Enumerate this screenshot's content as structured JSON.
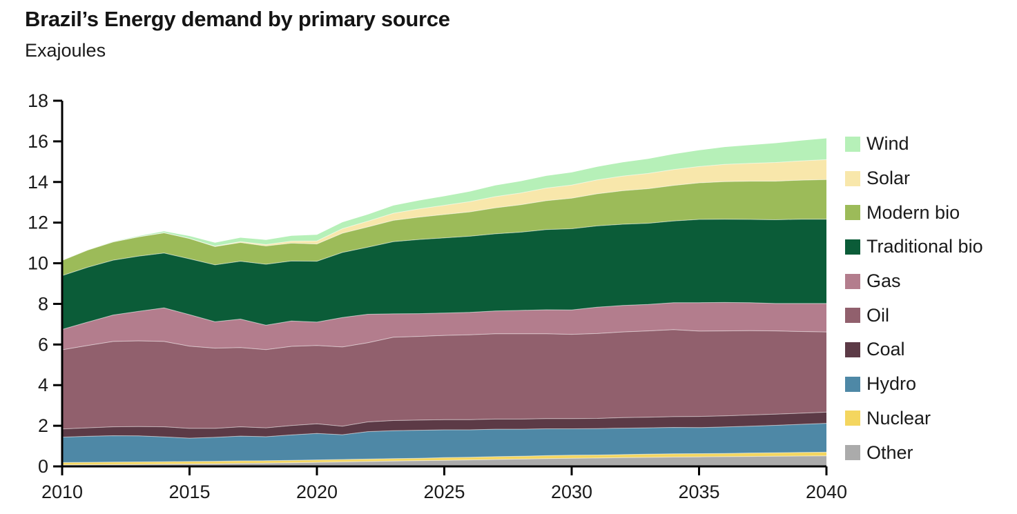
{
  "header": {
    "title": "Brazil’s Energy demand by primary source",
    "subtitle": "Exajoules"
  },
  "chart_data": {
    "type": "area",
    "stacked": true,
    "title": "Brazil’s Energy demand by primary source",
    "ylabel": "Exajoules",
    "xlabel": "",
    "grid": false,
    "legend_position": "right",
    "ylim": [
      0,
      18
    ],
    "xlim": [
      2010,
      2040
    ],
    "y_ticks": [
      0,
      2,
      4,
      6,
      8,
      10,
      12,
      14,
      16,
      18
    ],
    "x_ticks": [
      2010,
      2015,
      2020,
      2025,
      2030,
      2035,
      2040
    ],
    "x": [
      2010,
      2011,
      2012,
      2013,
      2014,
      2015,
      2016,
      2017,
      2018,
      2019,
      2020,
      2021,
      2022,
      2023,
      2024,
      2025,
      2026,
      2027,
      2028,
      2029,
      2030,
      2031,
      2032,
      2033,
      2034,
      2035,
      2036,
      2037,
      2038,
      2039,
      2040
    ],
    "series": [
      {
        "name": "Other",
        "color": "#ababab",
        "values": [
          0.07,
          0.08,
          0.09,
          0.1,
          0.11,
          0.12,
          0.13,
          0.15,
          0.16,
          0.18,
          0.2,
          0.22,
          0.24,
          0.26,
          0.28,
          0.3,
          0.32,
          0.34,
          0.36,
          0.38,
          0.4,
          0.41,
          0.43,
          0.44,
          0.46,
          0.47,
          0.48,
          0.49,
          0.5,
          0.51,
          0.52
        ]
      },
      {
        "name": "Nuclear",
        "color": "#f4d65f",
        "values": [
          0.12,
          0.12,
          0.12,
          0.12,
          0.12,
          0.12,
          0.12,
          0.12,
          0.12,
          0.12,
          0.12,
          0.12,
          0.12,
          0.12,
          0.12,
          0.13,
          0.13,
          0.14,
          0.14,
          0.15,
          0.15,
          0.15,
          0.15,
          0.16,
          0.16,
          0.16,
          0.16,
          0.17,
          0.17,
          0.18,
          0.18
        ]
      },
      {
        "name": "Hydro",
        "color": "#4e88a6",
        "values": [
          1.25,
          1.28,
          1.3,
          1.28,
          1.22,
          1.15,
          1.18,
          1.22,
          1.18,
          1.25,
          1.3,
          1.22,
          1.35,
          1.38,
          1.38,
          1.37,
          1.35,
          1.35,
          1.33,
          1.32,
          1.3,
          1.3,
          1.3,
          1.3,
          1.3,
          1.28,
          1.3,
          1.32,
          1.35,
          1.38,
          1.42
        ]
      },
      {
        "name": "Coal",
        "color": "#5c3a46",
        "values": [
          0.4,
          0.42,
          0.44,
          0.46,
          0.5,
          0.48,
          0.44,
          0.46,
          0.44,
          0.46,
          0.48,
          0.42,
          0.48,
          0.5,
          0.5,
          0.5,
          0.5,
          0.5,
          0.5,
          0.5,
          0.5,
          0.5,
          0.52,
          0.52,
          0.53,
          0.55,
          0.55,
          0.55,
          0.55,
          0.55,
          0.55
        ]
      },
      {
        "name": "Oil",
        "color": "#91606d",
        "values": [
          3.9,
          4.05,
          4.2,
          4.22,
          4.2,
          4.05,
          3.95,
          3.9,
          3.85,
          3.9,
          3.85,
          3.9,
          3.9,
          4.1,
          4.12,
          4.15,
          4.18,
          4.2,
          4.2,
          4.18,
          4.15,
          4.18,
          4.22,
          4.25,
          4.28,
          4.2,
          4.18,
          4.15,
          4.1,
          4.02,
          3.95
        ]
      },
      {
        "name": "Gas",
        "color": "#b37d8d",
        "values": [
          1.0,
          1.15,
          1.3,
          1.45,
          1.65,
          1.55,
          1.3,
          1.4,
          1.2,
          1.25,
          1.15,
          1.45,
          1.4,
          1.15,
          1.12,
          1.1,
          1.1,
          1.12,
          1.15,
          1.18,
          1.2,
          1.3,
          1.3,
          1.3,
          1.33,
          1.4,
          1.4,
          1.38,
          1.35,
          1.38,
          1.4
        ]
      },
      {
        "name": "Traditional bio",
        "color": "#0b5c38",
        "values": [
          2.65,
          2.7,
          2.7,
          2.72,
          2.7,
          2.75,
          2.8,
          2.85,
          3.0,
          2.95,
          3.0,
          3.2,
          3.3,
          3.55,
          3.65,
          3.7,
          3.75,
          3.8,
          3.85,
          3.95,
          4.0,
          4.0,
          4.0,
          4.0,
          4.02,
          4.1,
          4.1,
          4.1,
          4.12,
          4.15,
          4.15
        ]
      },
      {
        "name": "Modern bio",
        "color": "#9cbb59",
        "values": [
          0.75,
          0.85,
          0.9,
          0.95,
          1.0,
          1.0,
          0.9,
          0.92,
          0.9,
          0.88,
          0.85,
          0.95,
          1.0,
          1.05,
          1.1,
          1.15,
          1.2,
          1.28,
          1.35,
          1.42,
          1.5,
          1.58,
          1.65,
          1.7,
          1.75,
          1.8,
          1.85,
          1.88,
          1.9,
          1.92,
          1.95
        ]
      },
      {
        "name": "Solar",
        "color": "#f8e7ab",
        "values": [
          0.0,
          0.0,
          0.0,
          0.0,
          0.0,
          0.0,
          0.02,
          0.04,
          0.07,
          0.1,
          0.15,
          0.22,
          0.28,
          0.35,
          0.4,
          0.45,
          0.5,
          0.55,
          0.58,
          0.62,
          0.65,
          0.68,
          0.72,
          0.75,
          0.78,
          0.8,
          0.85,
          0.88,
          0.92,
          0.95,
          0.98
        ]
      },
      {
        "name": "Wind",
        "color": "#b6f0b8",
        "values": [
          0.0,
          0.01,
          0.02,
          0.04,
          0.07,
          0.12,
          0.17,
          0.2,
          0.23,
          0.26,
          0.3,
          0.32,
          0.33,
          0.38,
          0.42,
          0.45,
          0.5,
          0.55,
          0.58,
          0.6,
          0.62,
          0.65,
          0.68,
          0.72,
          0.76,
          0.8,
          0.85,
          0.9,
          0.95,
          1.0,
          1.05
        ]
      }
    ],
    "legend_top_to_bottom": [
      "Wind",
      "Solar",
      "Modern bio",
      "Traditional bio",
      "Gas",
      "Oil",
      "Coal",
      "Hydro",
      "Nuclear",
      "Other"
    ]
  }
}
